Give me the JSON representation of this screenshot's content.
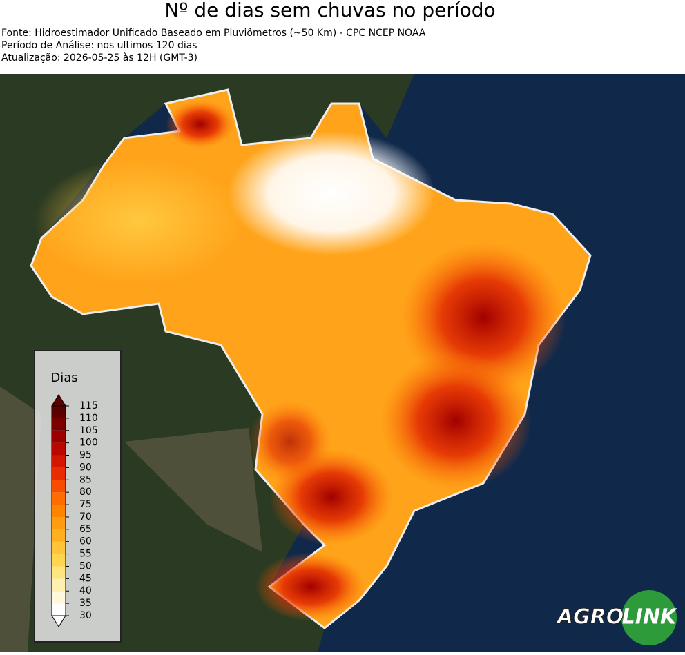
{
  "header": {
    "title": "Nº de dias sem chuvas no período",
    "lines": [
      "Fonte: Hidroestimador Unificado Baseado em Pluviômetros (~50 Km) - CPC NCEP NOAA",
      "Período de Análise: nos ultimos 120 dias",
      "Atualização: 2026-05-25 às 12H (GMT-3)"
    ]
  },
  "legend": {
    "title": "Dias",
    "ticks": [
      30,
      35,
      40,
      45,
      50,
      55,
      60,
      65,
      70,
      75,
      80,
      85,
      90,
      95,
      100,
      105,
      110,
      115
    ],
    "colors": [
      "#ffffff",
      "#fff8dc",
      "#fff0b0",
      "#ffe480",
      "#ffd550",
      "#ffc43a",
      "#ffb020",
      "#ff9c10",
      "#ff8400",
      "#ff6c00",
      "#f84c00",
      "#e82c00",
      "#d41600",
      "#b80800",
      "#9a0000",
      "#7a0000",
      "#5a0000"
    ]
  },
  "logo": {
    "left": "AGRO",
    "right": "LINK"
  }
}
